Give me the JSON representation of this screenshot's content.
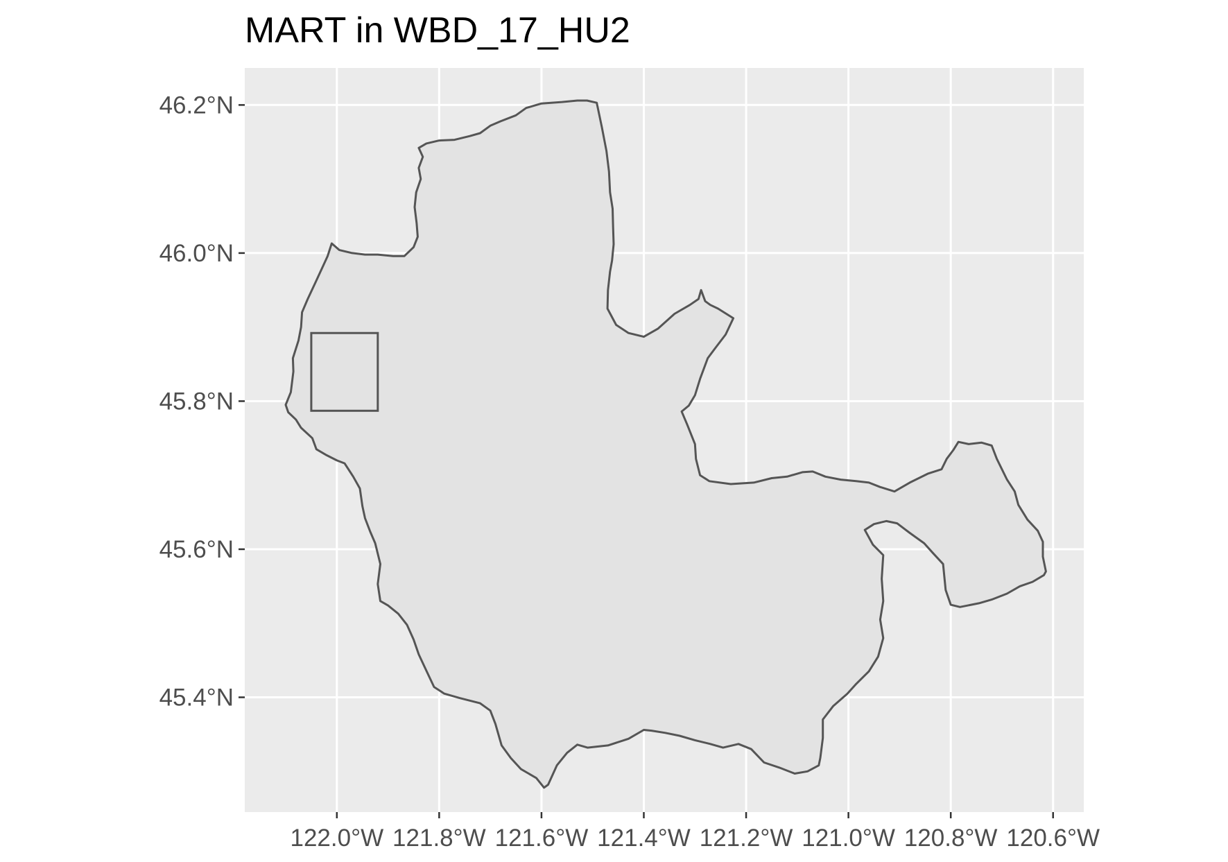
{
  "title": "MART in WBD_17_HU2",
  "map": {
    "panel_background": "#ebebeb",
    "grid_color": "#ffffff",
    "watershed_fill": "#e3e3e3",
    "outline_color": "#555555",
    "axis_text_color": "#4d4d4d",
    "x_ticks": [
      {
        "value": -122.0,
        "label": "122.0°W"
      },
      {
        "value": -121.8,
        "label": "121.8°W"
      },
      {
        "value": -121.6,
        "label": "121.6°W"
      },
      {
        "value": -121.4,
        "label": "121.4°W"
      },
      {
        "value": -121.2,
        "label": "121.2°W"
      },
      {
        "value": -121.0,
        "label": "121.0°W"
      },
      {
        "value": -120.8,
        "label": "120.8°W"
      },
      {
        "value": -120.6,
        "label": "120.6°W"
      }
    ],
    "y_ticks": [
      {
        "value": 46.2,
        "label": "46.2°N"
      },
      {
        "value": 46.0,
        "label": "46.0°N"
      },
      {
        "value": 45.8,
        "label": "45.8°N"
      },
      {
        "value": 45.6,
        "label": "45.6°N"
      },
      {
        "value": 45.4,
        "label": "45.4°N"
      }
    ],
    "lon_range": [
      -122.18,
      -120.54
    ],
    "lat_range": [
      45.245,
      46.25
    ],
    "site_box": {
      "lon": [
        -122.05,
        -121.92
      ],
      "lat": [
        45.787,
        45.892
      ]
    },
    "watershed_outline": [
      [
        -121.511,
        46.206
      ],
      [
        -121.492,
        46.203
      ],
      [
        -121.482,
        46.17
      ],
      [
        -121.473,
        46.138
      ],
      [
        -121.468,
        46.11
      ],
      [
        -121.466,
        46.082
      ],
      [
        -121.461,
        46.06
      ],
      [
        -121.46,
        46.035
      ],
      [
        -121.459,
        46.012
      ],
      [
        -121.462,
        45.99
      ],
      [
        -121.466,
        45.975
      ],
      [
        -121.47,
        45.95
      ],
      [
        -121.471,
        45.925
      ],
      [
        -121.454,
        45.903
      ],
      [
        -121.43,
        45.892
      ],
      [
        -121.4,
        45.887
      ],
      [
        -121.372,
        45.898
      ],
      [
        -121.34,
        45.918
      ],
      [
        -121.31,
        45.93
      ],
      [
        -121.293,
        45.938
      ],
      [
        -121.288,
        45.95
      ],
      [
        -121.28,
        45.935
      ],
      [
        -121.27,
        45.93
      ],
      [
        -121.255,
        45.925
      ],
      [
        -121.225,
        45.912
      ],
      [
        -121.24,
        45.89
      ],
      [
        -121.26,
        45.872
      ],
      [
        -121.275,
        45.858
      ],
      [
        -121.29,
        45.83
      ],
      [
        -121.3,
        45.808
      ],
      [
        -121.312,
        45.794
      ],
      [
        -121.326,
        45.786
      ],
      [
        -121.315,
        45.768
      ],
      [
        -121.3,
        45.742
      ],
      [
        -121.298,
        45.722
      ],
      [
        -121.29,
        45.7
      ],
      [
        -121.272,
        45.692
      ],
      [
        -121.23,
        45.688
      ],
      [
        -121.185,
        45.69
      ],
      [
        -121.15,
        45.696
      ],
      [
        -121.12,
        45.698
      ],
      [
        -121.09,
        45.704
      ],
      [
        -121.07,
        45.705
      ],
      [
        -121.045,
        45.698
      ],
      [
        -121.015,
        45.694
      ],
      [
        -120.985,
        45.692
      ],
      [
        -120.96,
        45.69
      ],
      [
        -120.938,
        45.684
      ],
      [
        -120.91,
        45.678
      ],
      [
        -120.88,
        45.69
      ],
      [
        -120.845,
        45.702
      ],
      [
        -120.818,
        45.708
      ],
      [
        -120.808,
        45.722
      ],
      [
        -120.795,
        45.734
      ],
      [
        -120.785,
        45.745
      ],
      [
        -120.765,
        45.742
      ],
      [
        -120.74,
        45.744
      ],
      [
        -120.72,
        45.74
      ],
      [
        -120.71,
        45.722
      ],
      [
        -120.69,
        45.694
      ],
      [
        -120.675,
        45.678
      ],
      [
        -120.668,
        45.66
      ],
      [
        -120.65,
        45.64
      ],
      [
        -120.63,
        45.625
      ],
      [
        -120.62,
        45.61
      ],
      [
        -120.62,
        45.59
      ],
      [
        -120.614,
        45.57
      ],
      [
        -120.618,
        45.565
      ],
      [
        -120.64,
        45.556
      ],
      [
        -120.665,
        45.55
      ],
      [
        -120.69,
        45.54
      ],
      [
        -120.72,
        45.532
      ],
      [
        -120.745,
        45.527
      ],
      [
        -120.782,
        45.522
      ],
      [
        -120.8,
        45.525
      ],
      [
        -120.81,
        45.545
      ],
      [
        -120.815,
        45.58
      ],
      [
        -120.835,
        45.595
      ],
      [
        -120.852,
        45.608
      ],
      [
        -120.88,
        45.622
      ],
      [
        -120.905,
        45.635
      ],
      [
        -120.926,
        45.638
      ],
      [
        -120.95,
        45.634
      ],
      [
        -120.968,
        45.626
      ],
      [
        -120.952,
        45.606
      ],
      [
        -120.932,
        45.592
      ],
      [
        -120.935,
        45.56
      ],
      [
        -120.932,
        45.53
      ],
      [
        -120.938,
        45.505
      ],
      [
        -120.932,
        45.48
      ],
      [
        -120.942,
        45.455
      ],
      [
        -120.96,
        45.435
      ],
      [
        -120.985,
        45.418
      ],
      [
        -121.002,
        45.405
      ],
      [
        -121.03,
        45.388
      ],
      [
        -121.05,
        45.37
      ],
      [
        -121.05,
        45.345
      ],
      [
        -121.055,
        45.318
      ],
      [
        -121.058,
        45.308
      ],
      [
        -121.08,
        45.3
      ],
      [
        -121.105,
        45.297
      ],
      [
        -121.135,
        45.305
      ],
      [
        -121.165,
        45.312
      ],
      [
        -121.19,
        45.33
      ],
      [
        -121.215,
        45.337
      ],
      [
        -121.245,
        45.332
      ],
      [
        -121.27,
        45.337
      ],
      [
        -121.3,
        45.342
      ],
      [
        -121.33,
        45.348
      ],
      [
        -121.358,
        45.352
      ],
      [
        -121.385,
        45.355
      ],
      [
        -121.4,
        45.356
      ],
      [
        -121.43,
        45.344
      ],
      [
        -121.47,
        45.335
      ],
      [
        -121.51,
        45.332
      ],
      [
        -121.53,
        45.336
      ],
      [
        -121.55,
        45.325
      ],
      [
        -121.57,
        45.308
      ],
      [
        -121.587,
        45.282
      ],
      [
        -121.595,
        45.278
      ],
      [
        -121.61,
        45.291
      ],
      [
        -121.64,
        45.303
      ],
      [
        -121.66,
        45.318
      ],
      [
        -121.678,
        45.335
      ],
      [
        -121.69,
        45.364
      ],
      [
        -121.7,
        45.382
      ],
      [
        -121.72,
        45.392
      ],
      [
        -121.76,
        45.399
      ],
      [
        -121.79,
        45.405
      ],
      [
        -121.81,
        45.414
      ],
      [
        -121.825,
        45.436
      ],
      [
        -121.84,
        45.458
      ],
      [
        -121.85,
        45.478
      ],
      [
        -121.863,
        45.498
      ],
      [
        -121.88,
        45.513
      ],
      [
        -121.9,
        45.524
      ],
      [
        -121.915,
        45.53
      ],
      [
        -121.92,
        45.553
      ],
      [
        -121.915,
        45.58
      ],
      [
        -121.925,
        45.608
      ],
      [
        -121.935,
        45.624
      ],
      [
        -121.945,
        45.642
      ],
      [
        -121.95,
        45.658
      ],
      [
        -121.955,
        45.682
      ],
      [
        -121.968,
        45.698
      ],
      [
        -121.985,
        45.716
      ],
      [
        -122.0,
        45.72
      ],
      [
        -122.02,
        45.727
      ],
      [
        -122.04,
        45.735
      ],
      [
        -122.048,
        45.75
      ],
      [
        -122.07,
        45.764
      ],
      [
        -122.08,
        45.775
      ],
      [
        -122.095,
        45.785
      ],
      [
        -122.1,
        45.795
      ],
      [
        -122.09,
        45.812
      ],
      [
        -122.085,
        45.84
      ],
      [
        -122.086,
        45.858
      ],
      [
        -122.075,
        45.882
      ],
      [
        -122.07,
        45.9
      ],
      [
        -122.068,
        45.92
      ],
      [
        -122.057,
        45.938
      ],
      [
        -122.042,
        45.96
      ],
      [
        -122.03,
        45.978
      ],
      [
        -122.018,
        45.996
      ],
      [
        -122.01,
        46.013
      ],
      [
        -121.995,
        46.004
      ],
      [
        -121.97,
        46.0
      ],
      [
        -121.945,
        45.998
      ],
      [
        -121.92,
        45.998
      ],
      [
        -121.89,
        45.996
      ],
      [
        -121.868,
        45.996
      ],
      [
        -121.85,
        46.008
      ],
      [
        -121.842,
        46.022
      ],
      [
        -121.844,
        46.04
      ],
      [
        -121.848,
        46.062
      ],
      [
        -121.845,
        46.082
      ],
      [
        -121.836,
        46.1
      ],
      [
        -121.84,
        46.115
      ],
      [
        -121.832,
        46.13
      ],
      [
        -121.84,
        46.142
      ],
      [
        -121.825,
        46.148
      ],
      [
        -121.8,
        46.152
      ],
      [
        -121.77,
        46.153
      ],
      [
        -121.74,
        46.158
      ],
      [
        -121.72,
        46.162
      ],
      [
        -121.7,
        46.172
      ],
      [
        -121.68,
        46.178
      ],
      [
        -121.65,
        46.186
      ],
      [
        -121.63,
        46.196
      ],
      [
        -121.6,
        46.202
      ],
      [
        -121.56,
        46.204
      ],
      [
        -121.53,
        46.206
      ]
    ]
  }
}
